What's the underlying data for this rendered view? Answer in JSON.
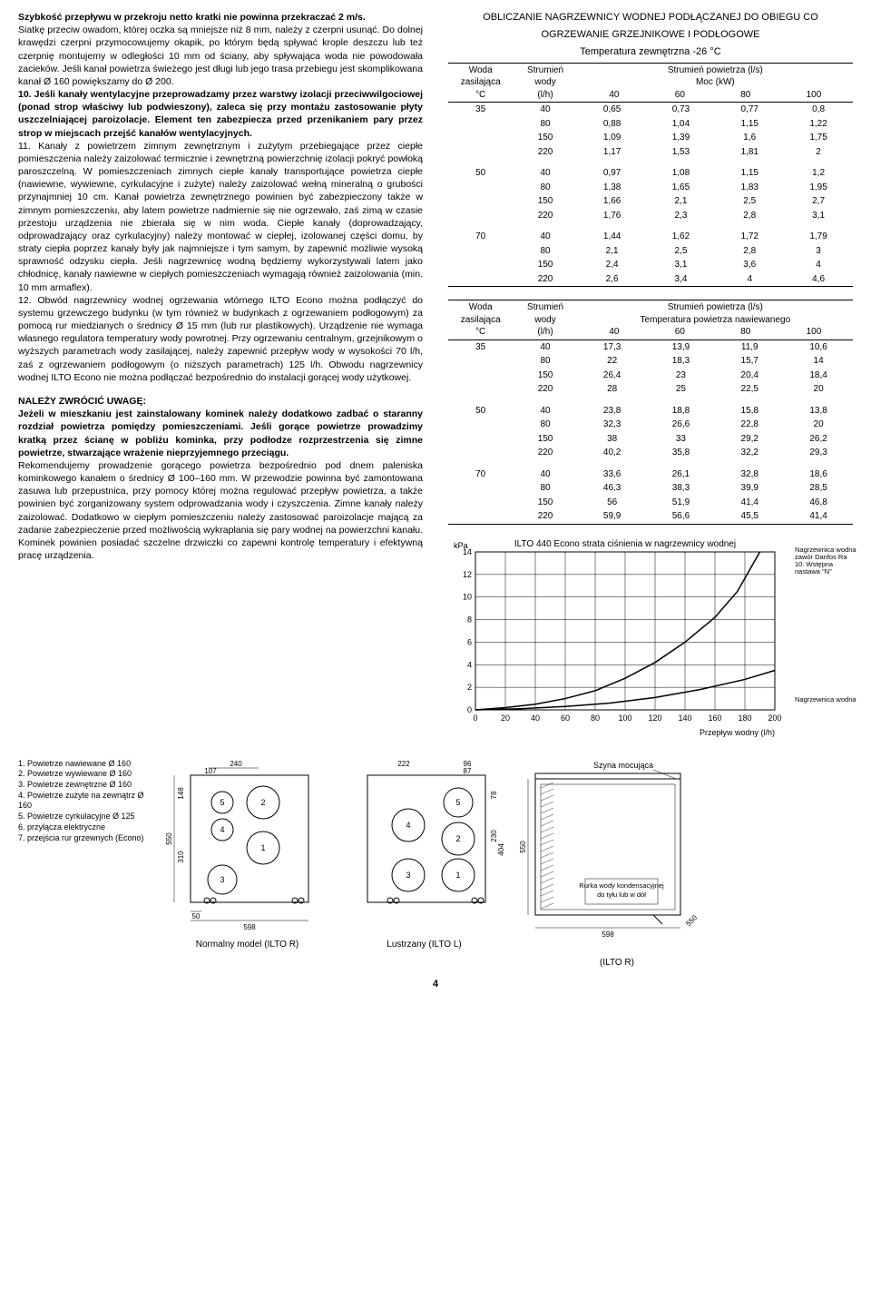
{
  "left": {
    "p1": "Szybkość przepływu w przekroju netto kratki nie powinna przekraczać 2 m/s.",
    "p2": "Siatkę przeciw owadom, której oczka są mniejsze niż 8 mm, należy z czerpni usunąć. Do dolnej krawędzi czerpni przymocowujemy okapik, po którym będą spływać krople deszczu lub też czerpnię montujemy w odległości 10 mm od ściany, aby spływająca woda nie powodowała zacieków. Jeśli kanał powietrza świeżego jest długi lub jego trasa przebiegu jest skomplikowana kanał Ø 160 powiększamy do Ø 200.",
    "p3a": "10. Jeśli kanały wentylacyjne przeprowadzamy przez warstwy izolacji przeciwwilgociowej (ponad strop właściwy lub podwieszony), zaleca się przy montażu zastosowanie płyty uszczelniającej paroizolacje. Element ten zabezpiecza przed przenikaniem pary przez strop w miejscach przejść kanałów wentylacyjnych.",
    "p3b": "11. Kanały z powietrzem zimnym zewnętrznym i zużytym przebiegające przez ciepłe pomieszczenia należy zaizolować termicznie i zewnętrzną powierzchnię izolacji pokryć powłoką paroszczelną. W pomieszczeniach zimnych ciepłe kanały transportujące powietrza ciepłe (nawiewne, wywiewne, cyrkulacyjne i zużyte) należy zaizolować wełną mineralną o grubości przynajmniej 10 cm. Kanał powietrza zewnętrznego powinien być zabezpieczony także w zimnym pomieszczeniu, aby latem powietrze nadmiernie się nie ogrzewało, zaś zimą w czasie przestoju urządzenia nie zbierała się w nim woda. Ciepłe kanały (doprowadzający, odprowadzający oraz cyrkulacyjny) należy montować w ciepłej, izolowanej części domu, by straty ciepła poprzez kanały były jak najmniejsze i tym samym, by zapewnić możliwie wysoką sprawność odzysku ciepła. Jeśli nagrzewnicę wodną będziemy wykorzystywali latem jako chłodnicę, kanały nawiewne w ciepłych pomieszczeniach wymagają również zaizolowania (min. 10 mm armaflex).",
    "p3c": "12. Obwód nagrzewnicy wodnej ogrzewania wtórnego ILTO Econo można podłączyć do systemu grzewczego budynku (w tym również w budynkach z ogrzewaniem podłogowym) za pomocą rur miedzianych o średnicy Ø 15 mm (lub rur plastikowych). Urządzenie nie wymaga własnego regulatora temperatury wody powrotnej. Przy ogrzewaniu centralnym, grzejnikowym o wyższych parametrach wody zasilającej, należy zapewnić przepływ wody w wysokości 70 l/h, zaś z ogrzewaniem podłogowym (o niższych parametrach) 125 l/h. Obwodu nagrzewnicy wodnej ILTO Econo nie można podłączać bezpośrednio do instalacji gorącej wody użytkowej.",
    "attn_title": "NALEŻY ZWRÓCIĆ UWAGĘ:",
    "attn1": "Jeżeli w mieszkaniu jest zainstalowany kominek należy dodatkowo zadbać o staranny rozdział powietrza pomiędzy pomieszczeniami. Jeśli gorące powietrze prowadzimy kratką przez ścianę w pobliżu kominka, przy podłodze rozprzestrzenia się zimne powietrze, stwarzające wrażenie nieprzyjemnego przeciągu.",
    "attn2": "Rekomendujemy prowadzenie gorącego powietrza bezpośrednio pod dnem paleniska kominkowego kanałem o średnicy Ø 100–160 mm. W przewodzie powinna być zamontowana zasuwa lub przepustnica, przy pomocy której można regulować przepływ powietrza, a także powinien być zorganizowany system odprowadzania wody i czyszczenia. Zimne kanały należy zaizolować. Dodatkowo w ciepłym pomieszczeniu należy zastosować paroizolacje mającą za zadanie zabezpieczenie przed możliwością wykraplania się pary wodnej na powierzchni kanału. Kominek powinien posiadać szczelne drzwiczki co zapewni kontrolę temperatury i efektywną pracę urządzenia."
  },
  "calc": {
    "title1": "OBLICZANIE NAGRZEWNICY WODNEJ PODŁĄCZANEJ DO OBIEGU CO",
    "title2": "OGRZEWANIE GRZEJNIKOWE I PODŁOGOWE",
    "title3": "Temperatura zewnętrzna -26 °C",
    "col_water": "Woda\nzasilająca\n°C",
    "col_flow": "Strumień\nwody\n(l/h)",
    "col_air": "Strumień powietrza (l/s)",
    "col_power": "Moc (kW)",
    "col_temp": "Temperatura powietrza nawiewanego",
    "flow_cols": [
      "40",
      "60",
      "80",
      "100"
    ],
    "t1": {
      "g1": {
        "water": "35",
        "flows": [
          "40",
          "80",
          "150",
          "220"
        ],
        "vals": [
          [
            "0,65",
            "0,73",
            "0,77",
            "0,8"
          ],
          [
            "0,88",
            "1,04",
            "1,15",
            "1,22"
          ],
          [
            "1,09",
            "1,39",
            "1,6",
            "1,75"
          ],
          [
            "1,17",
            "1,53",
            "1,81",
            "2"
          ]
        ]
      },
      "g2": {
        "water": "50",
        "flows": [
          "40",
          "80",
          "150",
          "220"
        ],
        "vals": [
          [
            "0,97",
            "1,08",
            "1,15",
            "1,2"
          ],
          [
            "1,38",
            "1,65",
            "1,83",
            "1,95"
          ],
          [
            "1,66",
            "2,1",
            "2,5",
            "2,7"
          ],
          [
            "1,76",
            "2,3",
            "2,8",
            "3,1"
          ]
        ]
      },
      "g3": {
        "water": "70",
        "flows": [
          "40",
          "80",
          "150",
          "220"
        ],
        "vals": [
          [
            "1,44",
            "1,62",
            "1,72",
            "1,79"
          ],
          [
            "2,1",
            "2,5",
            "2,8",
            "3"
          ],
          [
            "2,4",
            "3,1",
            "3,6",
            "4"
          ],
          [
            "2,6",
            "3,4",
            "4",
            "4,6"
          ]
        ]
      }
    },
    "t2": {
      "g1": {
        "water": "35",
        "flows": [
          "40",
          "80",
          "150",
          "220"
        ],
        "vals": [
          [
            "17,3",
            "13,9",
            "11,9",
            "10,6"
          ],
          [
            "22",
            "18,3",
            "15,7",
            "14"
          ],
          [
            "26,4",
            "23",
            "20,4",
            "18,4"
          ],
          [
            "28",
            "25",
            "22,5",
            "20"
          ]
        ]
      },
      "g2": {
        "water": "50",
        "flows": [
          "40",
          "80",
          "150",
          "220"
        ],
        "vals": [
          [
            "23,8",
            "18,8",
            "15,8",
            "13,8"
          ],
          [
            "32,3",
            "26,6",
            "22,8",
            "20"
          ],
          [
            "38",
            "33",
            "29,2",
            "26,2"
          ],
          [
            "40,2",
            "35,8",
            "32,2",
            "29,3"
          ]
        ]
      },
      "g3": {
        "water": "70",
        "flows": [
          "40",
          "80",
          "150",
          "220"
        ],
        "vals": [
          [
            "33,6",
            "26,1",
            "32,8",
            "18,6"
          ],
          [
            "46,3",
            "38,3",
            "39,9",
            "28,5"
          ],
          [
            "56",
            "51,9",
            "41,4",
            "46,8"
          ],
          [
            "59,9",
            "56,6",
            "45,5",
            "41,4"
          ]
        ]
      }
    }
  },
  "chart": {
    "ylabel": "kPa",
    "title": "ILTO 440 Econo strata ciśnienia w nagrzewnicy wodnej",
    "ymax": 14,
    "ystep": 2,
    "xmax": 200,
    "xstep": 20,
    "xlabel": "Przepływ wodny (l/h)",
    "legend1": "Nagrzewnica wodna zawór Danfos Ra 10. Wstępna nastawa \"N\"",
    "legend2": "Nagrzewnica wodna",
    "curve_upper": [
      [
        0,
        0
      ],
      [
        20,
        0.2
      ],
      [
        40,
        0.5
      ],
      [
        60,
        1.0
      ],
      [
        80,
        1.7
      ],
      [
        100,
        2.8
      ],
      [
        120,
        4.2
      ],
      [
        140,
        6.0
      ],
      [
        160,
        8.2
      ],
      [
        175,
        10.5
      ],
      [
        190,
        14
      ]
    ],
    "curve_lower": [
      [
        0,
        0
      ],
      [
        30,
        0.1
      ],
      [
        60,
        0.3
      ],
      [
        90,
        0.6
      ],
      [
        120,
        1.1
      ],
      [
        150,
        1.8
      ],
      [
        180,
        2.7
      ],
      [
        200,
        3.5
      ]
    ],
    "grid_color": "#000",
    "stroke": "#000"
  },
  "legend": {
    "items": [
      "1. Powietrze nawiewane Ø 160",
      "2. Powietrze wywiewane Ø 160",
      "3. Powietrze zewnętrzne Ø 160",
      "4. Powietrze zużyte na zewnątrz Ø 160",
      "5. Powietrze cyrkulacyjne Ø 125",
      "6. przyłącza elektryczne",
      "7. przejścia rur grzewnych (Econo)"
    ]
  },
  "diagrams": {
    "d1_cap": "Normalny model (ILTO R)",
    "d2_cap": "Lustrzany (ILTO L)",
    "d3_cap": "(ILTO R)",
    "szyna": "Szyna mocująca",
    "rurka": "Rurka wody kondensacyjnej do tyłu lub w dół",
    "dims": {
      "550": "550",
      "598": "598",
      "50": "50",
      "107": "107",
      "240": "240",
      "148": "148",
      "310": "310",
      "222": "222",
      "96": "96",
      "87": "87",
      "78": "78",
      "230": "230",
      "404": "404"
    }
  },
  "page": "4"
}
